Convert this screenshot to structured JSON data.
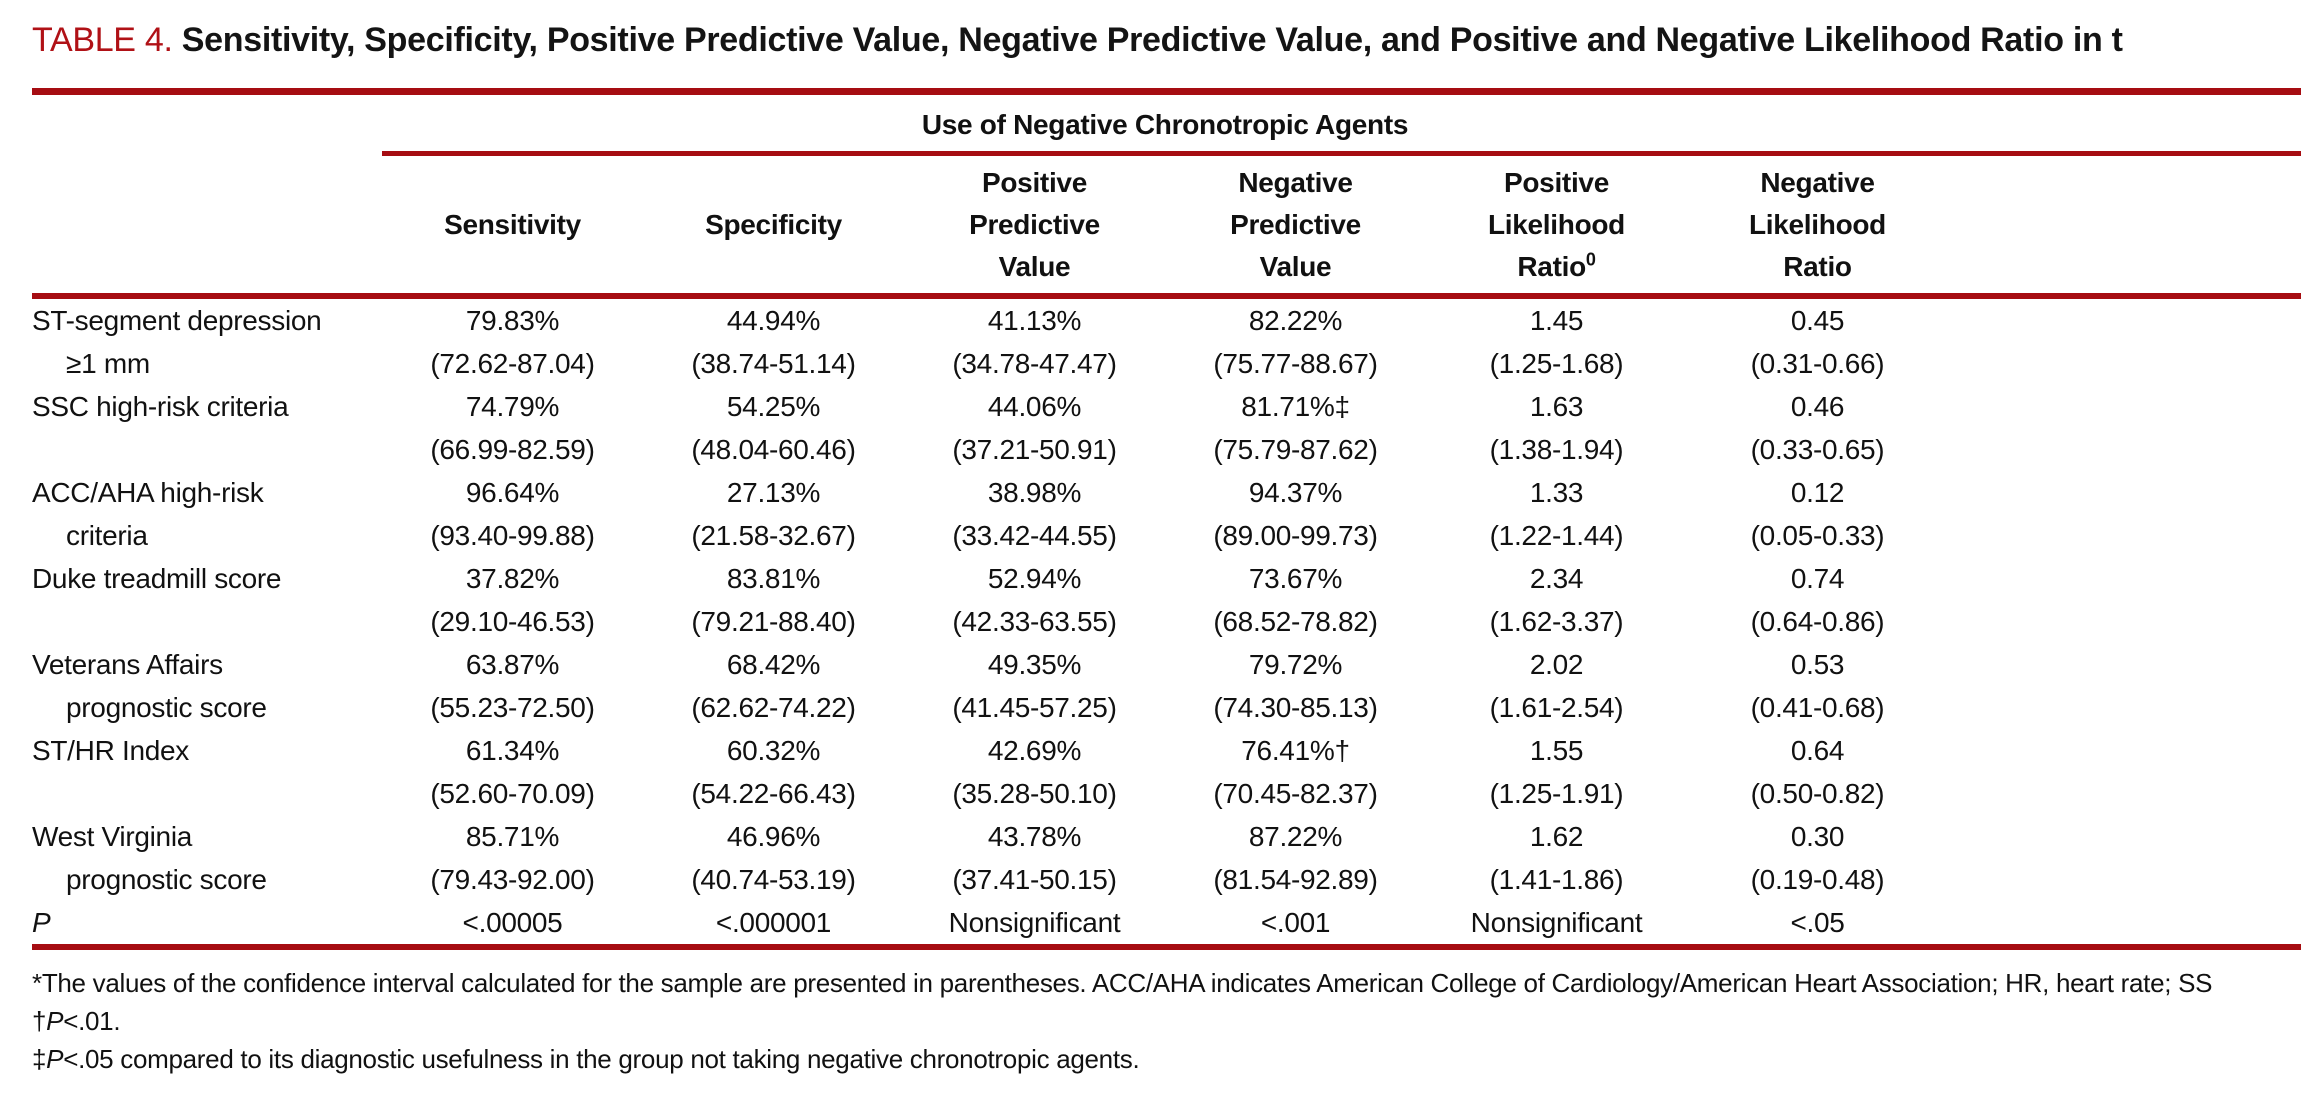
{
  "title": {
    "label": "TABLE 4.",
    "text": "Sensitivity, Specificity, Positive Predictive Value, Negative Predictive Value, and Positive and Negative Likelihood Ratio in t"
  },
  "table": {
    "spanner": "Use of Negative Chronotropic Agents",
    "columns": [
      {
        "line1": "",
        "line2": "Sensitivity",
        "line3": "",
        "sup": ""
      },
      {
        "line1": "",
        "line2": "Specificity",
        "line3": "",
        "sup": ""
      },
      {
        "line1": "Positive",
        "line2": "Predictive",
        "line3": "Value",
        "sup": ""
      },
      {
        "line1": "Negative",
        "line2": "Predictive",
        "line3": "Value",
        "sup": ""
      },
      {
        "line1": "Positive",
        "line2": "Likelihood",
        "line3": "Ratio",
        "sup": "0"
      },
      {
        "line1": "Negative",
        "line2": "Likelihood",
        "line3": "Ratio",
        "sup": ""
      }
    ],
    "rows": [
      {
        "label1": "ST-segment depression",
        "label2": "≥1 mm",
        "cells": [
          [
            "79.83%",
            "(72.62-87.04)"
          ],
          [
            "44.94%",
            "(38.74-51.14)"
          ],
          [
            "41.13%",
            "(34.78-47.47)"
          ],
          [
            "82.22%",
            "(75.77-88.67)"
          ],
          [
            "1.45",
            "(1.25-1.68)"
          ],
          [
            "0.45",
            "(0.31-0.66)"
          ]
        ]
      },
      {
        "label1": "SSC high-risk criteria",
        "label2": "",
        "cells": [
          [
            "74.79%",
            "(66.99-82.59)"
          ],
          [
            "54.25%",
            "(48.04-60.46)"
          ],
          [
            "44.06%",
            "(37.21-50.91)"
          ],
          [
            "81.71%‡",
            "(75.79-87.62)"
          ],
          [
            "1.63",
            "(1.38-1.94)"
          ],
          [
            "0.46",
            "(0.33-0.65)"
          ]
        ]
      },
      {
        "label1": "ACC/AHA high-risk",
        "label2": "criteria",
        "cells": [
          [
            "96.64%",
            "(93.40-99.88)"
          ],
          [
            "27.13%",
            "(21.58-32.67)"
          ],
          [
            "38.98%",
            "(33.42-44.55)"
          ],
          [
            "94.37%",
            "(89.00-99.73)"
          ],
          [
            "1.33",
            "(1.22-1.44)"
          ],
          [
            "0.12",
            "(0.05-0.33)"
          ]
        ]
      },
      {
        "label1": "Duke treadmill score",
        "label2": "",
        "cells": [
          [
            "37.82%",
            "(29.10-46.53)"
          ],
          [
            "83.81%",
            "(79.21-88.40)"
          ],
          [
            "52.94%",
            "(42.33-63.55)"
          ],
          [
            "73.67%",
            "(68.52-78.82)"
          ],
          [
            "2.34",
            "(1.62-3.37)"
          ],
          [
            "0.74",
            "(0.64-0.86)"
          ]
        ]
      },
      {
        "label1": "Veterans Affairs",
        "label2": "prognostic score",
        "cells": [
          [
            "63.87%",
            "(55.23-72.50)"
          ],
          [
            "68.42%",
            "(62.62-74.22)"
          ],
          [
            "49.35%",
            "(41.45-57.25)"
          ],
          [
            "79.72%",
            "(74.30-85.13)"
          ],
          [
            "2.02",
            "(1.61-2.54)"
          ],
          [
            "0.53",
            "(0.41-0.68)"
          ]
        ]
      },
      {
        "label1": "ST/HR Index",
        "label2": "",
        "cells": [
          [
            "61.34%",
            "(52.60-70.09)"
          ],
          [
            "60.32%",
            "(54.22-66.43)"
          ],
          [
            "42.69%",
            "(35.28-50.10)"
          ],
          [
            "76.41%†",
            "(70.45-82.37)"
          ],
          [
            "1.55",
            "(1.25-1.91)"
          ],
          [
            "0.64",
            "(0.50-0.82)"
          ]
        ]
      },
      {
        "label1": "West Virginia",
        "label2": "prognostic score",
        "cells": [
          [
            "85.71%",
            "(79.43-92.00)"
          ],
          [
            "46.96%",
            "(40.74-53.19)"
          ],
          [
            "43.78%",
            "(37.41-50.15)"
          ],
          [
            "87.22%",
            "(81.54-92.89)"
          ],
          [
            "1.62",
            "(1.41-1.86)"
          ],
          [
            "0.30",
            "(0.19-0.48)"
          ]
        ]
      }
    ],
    "p_row": {
      "label": "P",
      "values": [
        "<.00005",
        "<.000001",
        "Nonsignificant",
        "<.001",
        "Nonsignificant",
        "<.05"
      ]
    }
  },
  "footnotes": {
    "note1": "*The values of the confidence interval calculated for the sample are presented in parentheses. ACC/AHA indicates American College of Cardiology/American Heart Association; HR, heart rate; SS",
    "note2": {
      "marker": "†",
      "p": "P",
      "rest": "<.01."
    },
    "note3": {
      "marker": "‡",
      "p": "P",
      "rest": "<.05 compared to its diagnostic usefulness in the group not taking negative chronotropic agents."
    }
  },
  "colors": {
    "rule": "#a60d12",
    "title_red": "#b01116"
  }
}
